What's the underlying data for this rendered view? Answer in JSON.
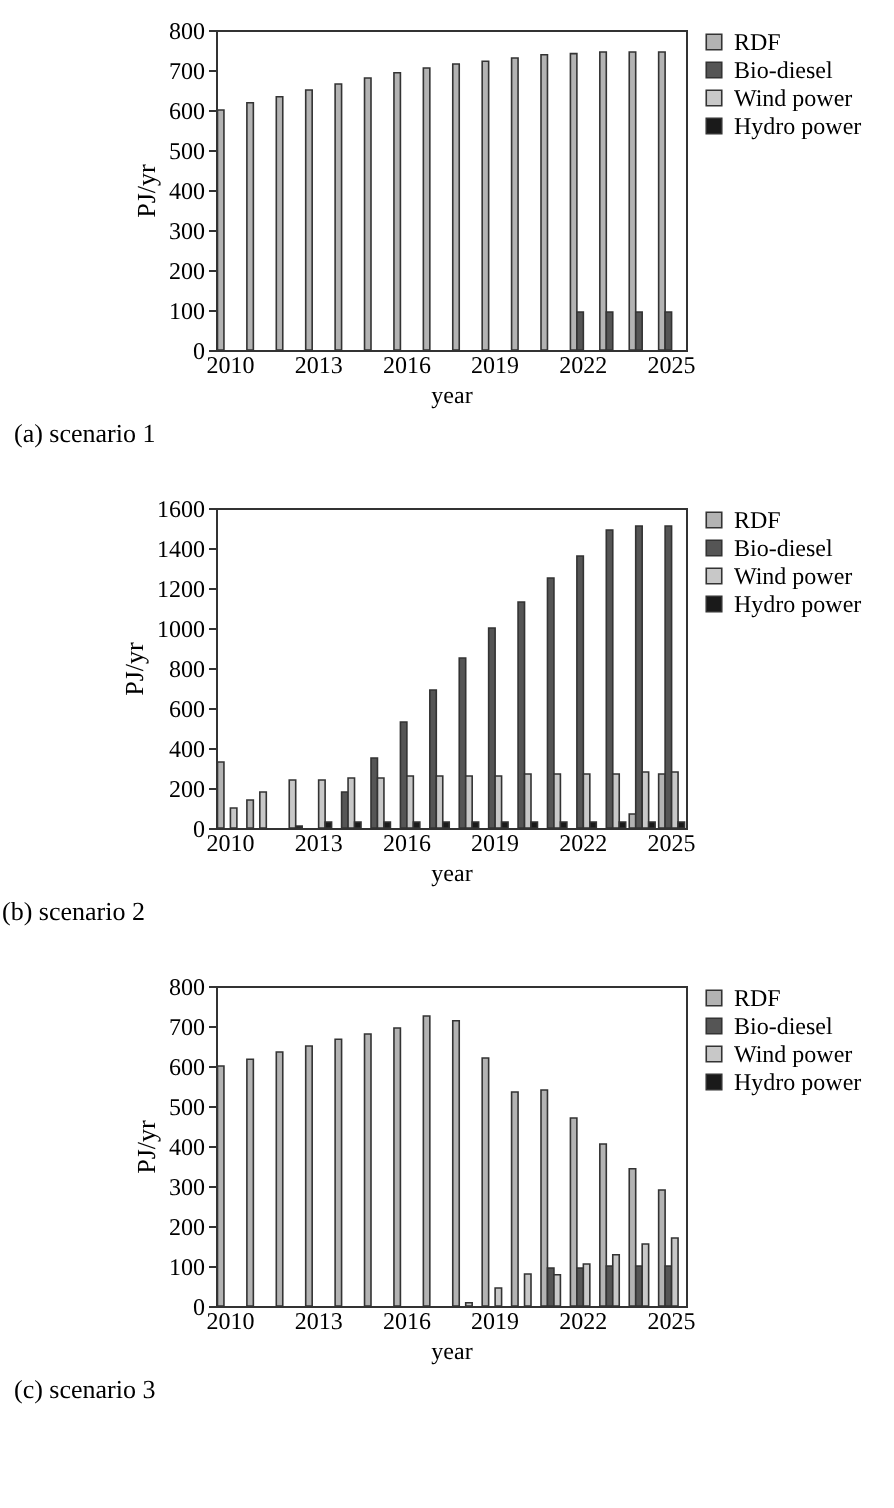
{
  "chart_data": [
    {
      "type": "bar",
      "title": "(a) scenario 1",
      "xlabel": "year",
      "ylabel": "PJ/yr",
      "categories": [
        "2010",
        null,
        null,
        "2013",
        null,
        null,
        "2016",
        null,
        null,
        "2019",
        null,
        null,
        "2022",
        null,
        null,
        "2025"
      ],
      "ylim": [
        0,
        800
      ],
      "yticks": [
        0,
        100,
        200,
        300,
        400,
        500,
        600,
        700,
        800
      ],
      "legend": "right",
      "series": [
        {
          "name": "RDF",
          "color": "#b3b3b3",
          "values": [
            600,
            618,
            633,
            650,
            665,
            680,
            693,
            705,
            715,
            722,
            730,
            738,
            741,
            745,
            745,
            745
          ]
        },
        {
          "name": "Bio-diesel",
          "color": "#555555",
          "values": [
            null,
            null,
            null,
            null,
            null,
            null,
            null,
            null,
            null,
            null,
            null,
            null,
            95,
            95,
            95,
            95
          ]
        },
        {
          "name": "Wind power",
          "color": "#c8c8c8",
          "values": [
            null,
            null,
            null,
            null,
            null,
            null,
            null,
            null,
            null,
            null,
            null,
            null,
            null,
            null,
            null,
            null
          ]
        },
        {
          "name": "Hydro power",
          "color": "#1a1a1a",
          "values": [
            null,
            null,
            null,
            null,
            null,
            null,
            null,
            null,
            null,
            null,
            null,
            null,
            null,
            null,
            null,
            null
          ]
        }
      ]
    },
    {
      "type": "bar",
      "title": "(b) scenario 2",
      "xlabel": "year",
      "ylabel": "PJ/yr",
      "categories": [
        "2010",
        null,
        null,
        "2013",
        null,
        null,
        "2016",
        null,
        null,
        "2019",
        null,
        null,
        "2022",
        null,
        null,
        "2025"
      ],
      "ylim": [
        0,
        1600
      ],
      "yticks": [
        0,
        200,
        400,
        600,
        800,
        1000,
        1200,
        1400,
        1600
      ],
      "legend": "right",
      "series": [
        {
          "name": "RDF",
          "color": "#b3b3b3",
          "values": [
            330,
            140,
            null,
            null,
            null,
            null,
            null,
            null,
            null,
            null,
            null,
            null,
            null,
            null,
            70,
            270
          ]
        },
        {
          "name": "Bio-diesel",
          "color": "#555555",
          "values": [
            null,
            null,
            null,
            null,
            180,
            350,
            530,
            690,
            850,
            1000,
            1130,
            1250,
            1360,
            1490,
            1510,
            1510
          ]
        },
        {
          "name": "Wind power",
          "color": "#c8c8c8",
          "values": [
            100,
            180,
            240,
            240,
            250,
            250,
            260,
            260,
            260,
            260,
            270,
            270,
            270,
            270,
            280,
            280
          ]
        },
        {
          "name": "Hydro power",
          "color": "#1a1a1a",
          "values": [
            null,
            null,
            10,
            30,
            30,
            30,
            30,
            30,
            30,
            30,
            30,
            30,
            30,
            30,
            30,
            30
          ]
        }
      ]
    },
    {
      "type": "bar",
      "title": "(c) scenario 3",
      "xlabel": "year",
      "ylabel": "PJ/yr",
      "categories": [
        "2010",
        null,
        null,
        "2013",
        null,
        null,
        "2016",
        null,
        null,
        "2019",
        null,
        null,
        "2022",
        null,
        null,
        "2025"
      ],
      "ylim": [
        0,
        800
      ],
      "yticks": [
        0,
        100,
        200,
        300,
        400,
        500,
        600,
        700,
        800
      ],
      "legend": "right",
      "series": [
        {
          "name": "RDF",
          "color": "#b3b3b3",
          "values": [
            600,
            617,
            635,
            650,
            667,
            680,
            695,
            725,
            713,
            620,
            535,
            540,
            470,
            405,
            343,
            290
          ]
        },
        {
          "name": "Bio-diesel",
          "color": "#555555",
          "values": [
            null,
            null,
            null,
            null,
            null,
            null,
            null,
            null,
            null,
            null,
            null,
            95,
            95,
            100,
            100,
            100
          ]
        },
        {
          "name": "Wind power",
          "color": "#c8c8c8",
          "values": [
            null,
            null,
            null,
            null,
            null,
            null,
            null,
            null,
            8,
            45,
            80,
            78,
            105,
            128,
            155,
            170
          ]
        },
        {
          "name": "Hydro power",
          "color": "#1a1a1a",
          "values": [
            null,
            null,
            null,
            null,
            null,
            null,
            null,
            null,
            null,
            null,
            null,
            null,
            null,
            null,
            null,
            null
          ]
        }
      ]
    }
  ]
}
